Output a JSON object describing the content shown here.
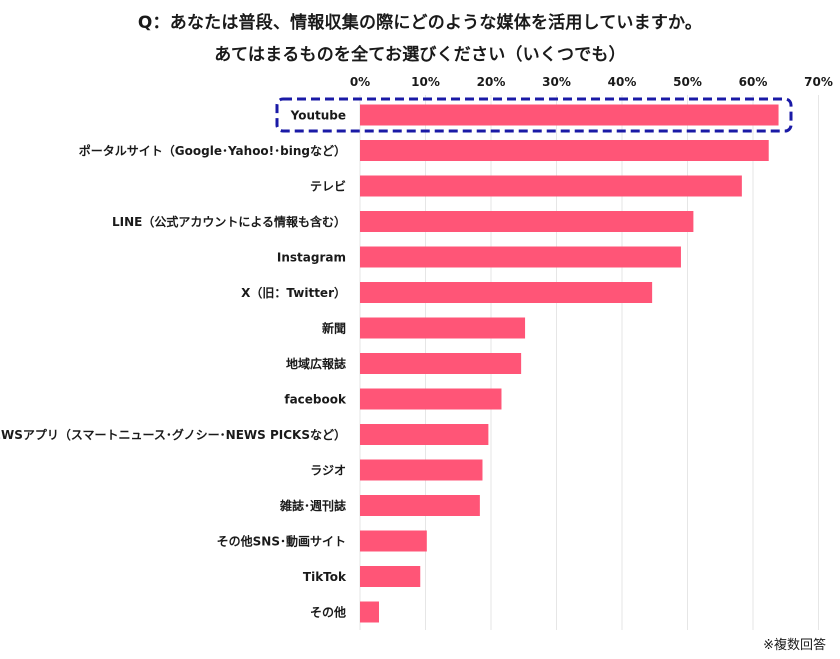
{
  "title_line1": "Q：あなたは普段、情報収集の際にどのような媒体を活用していますか。",
  "title_line2": "あてはまるものを全てお選びください（いくつでも）",
  "note": "※複数回答",
  "colors": {
    "bar": "#ff5577",
    "highlight": "#1a1aa6",
    "grid": "#e6e6e6"
  },
  "chart_data": {
    "type": "bar",
    "orientation": "horizontal",
    "categories": [
      "Youtube",
      "ポータルサイト（Google･Yahoo!･bingなど）",
      "テレビ",
      "LINE（公式アカウントによる情報も含む）",
      "Instagram",
      "X（旧：Twitter）",
      "新聞",
      "地域広報誌",
      "facebook",
      "NEWSアプリ（スマートニュース･グノシー･NEWS PICKSなど）",
      "ラジオ",
      "雑誌･週刊誌",
      "その他SNS･動画サイト",
      "TikTok",
      "その他"
    ],
    "values": [
      63.9,
      62.4,
      58.3,
      50.9,
      49.0,
      44.6,
      25.2,
      24.6,
      21.6,
      19.6,
      18.7,
      18.3,
      10.2,
      9.2,
      2.9
    ],
    "xlim": [
      0,
      70
    ],
    "xticks": [
      "0%",
      "10%",
      "20%",
      "30%",
      "40%",
      "50%",
      "60%",
      "70%"
    ],
    "grid": true,
    "highlighted_category": "Youtube"
  }
}
